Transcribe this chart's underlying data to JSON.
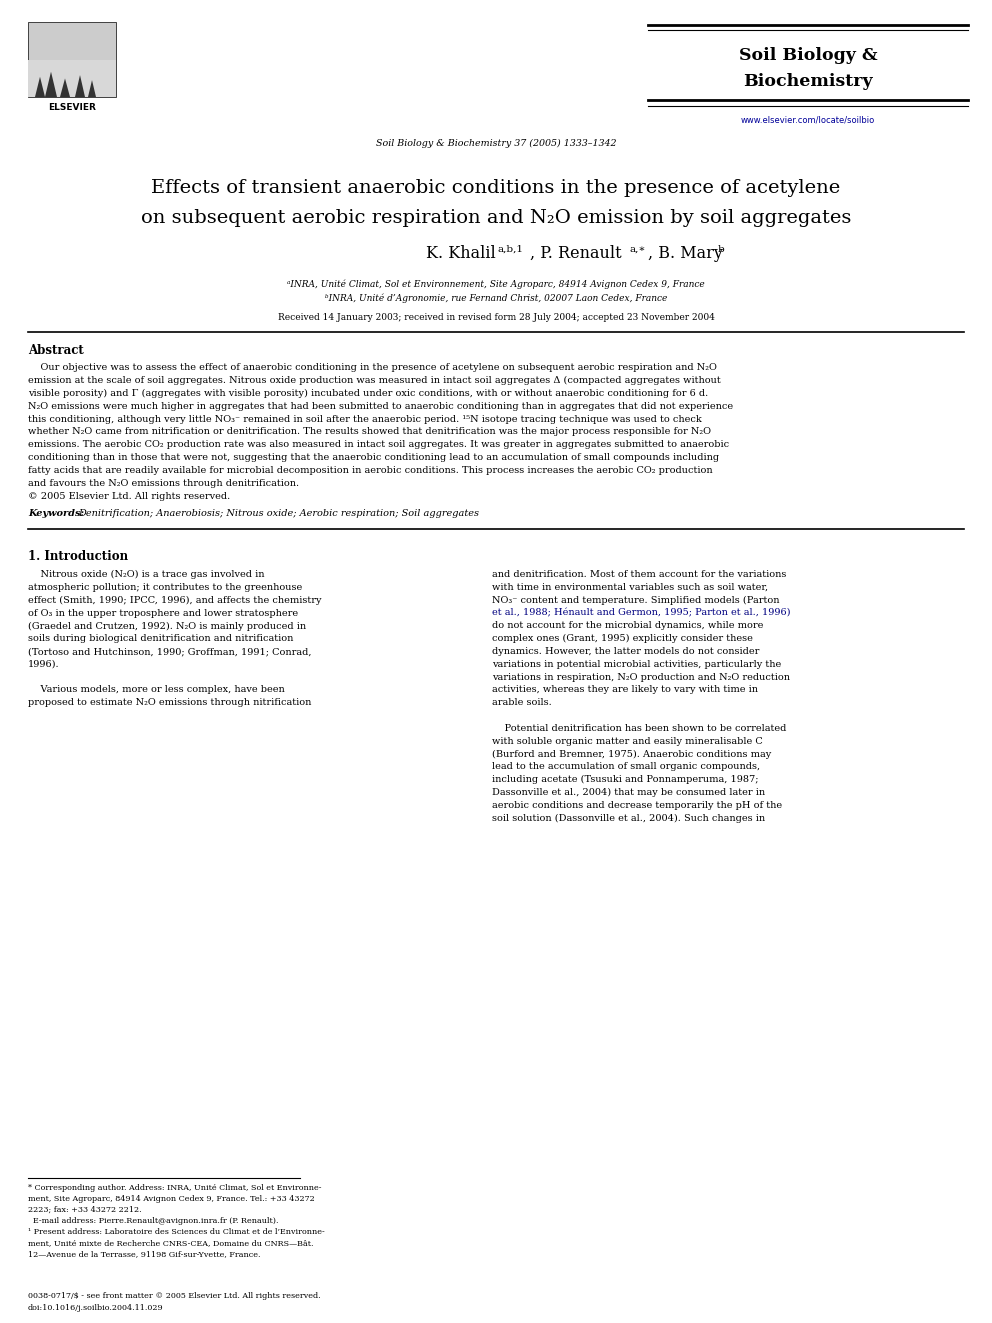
{
  "page_width": 9.92,
  "page_height": 13.23,
  "background_color": "#ffffff",
  "journal_name_line1": "Soil Biology &",
  "journal_name_line2": "Biochemistry",
  "journal_ref": "Soil Biology & Biochemistry 37 (2005) 1333–1342",
  "journal_url": "www.elsevier.com/locate/soilbio",
  "title_line1": "Effects of transient anaerobic conditions in the presence of acetylene",
  "title_line2a": "on subsequent aerobic respiration and N",
  "title_line2b": "2",
  "title_line2c": "O emission by soil aggregates",
  "affil_a": "ᵃINRA, Unité Climat, Sol et Environnement, Site Agroparc, 84914 Avignon Cedex 9, France",
  "affil_b": "ᵇINRA, Unité d’Agronomie, rue Fernand Christ, 02007 Laon Cedex, France",
  "received": "Received 14 January 2003; received in revised form 28 July 2004; accepted 23 November 2004",
  "abstract_title": "Abstract",
  "keywords_label": "Keywords:",
  "keywords_text": "Denitrification; Anaerobiosis; Nitrous oxide; Aerobic respiration; Soil aggregates",
  "section1_title": "1. Introduction",
  "corr_note": "* Corresponding author. Address: INRA, Unité Climat, Sol et Environnement, Site Agroparc, 84914 Avignon Cedex 9, France. Tel.: +33 43272 2223; fax: +33 43272 2212.",
  "email_note": "E-mail address: Pierre.Renault@avignon.inra.fr (P. Renault).",
  "present_note1": "¹ Present address: Laboratoire des Sciences du Climat et de l’Environne-",
  "present_note2": "ment, Unité mixte de Recherche CNRS-CEA, Domaine du CNRS—Bât.",
  "present_note3": "12—Avenue de la Terrasse, 91198 Gif-sur-Yvette, France.",
  "footer1": "0038-0717/$ - see front matter © 2005 Elsevier Ltd. All rights reserved.",
  "footer2": "doi:10.1016/j.soilbio.2004.11.029"
}
